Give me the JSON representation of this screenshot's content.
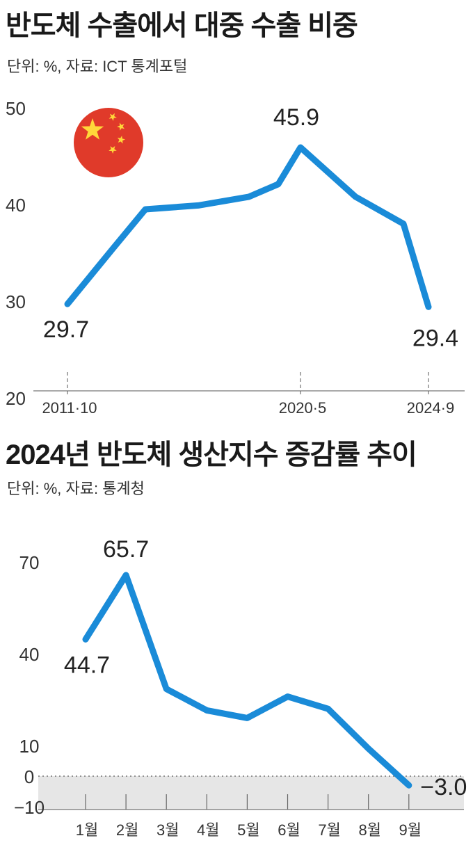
{
  "chart_data": [
    {
      "type": "line",
      "title": "반도체 수출에서 대중 수출 비중",
      "subtitle": "단위: %, 자료: ICT 통계포털",
      "x": [
        "2011·10",
        "",
        "",
        "",
        "",
        "",
        "2020·5",
        "",
        "",
        "2024·9"
      ],
      "xtick_labels": [
        "2011·10",
        "2020·5",
        "2024·9"
      ],
      "y_ticks": [
        20,
        30,
        40,
        50
      ],
      "ylim": [
        20,
        50
      ],
      "series": [
        {
          "values": [
            29.7,
            35.5,
            39.5,
            39.9,
            40.8,
            42.1,
            45.9,
            40.8,
            38.0,
            29.4
          ]
        }
      ],
      "data_labels": [
        {
          "index": 0,
          "text": "29.7"
        },
        {
          "index": 6,
          "text": "45.9"
        },
        {
          "index": 9,
          "text": "29.4"
        }
      ],
      "line_color": "#1a8bd8",
      "flag_icon": "china-flag-icon",
      "grid": false
    },
    {
      "type": "line",
      "title": "2024년 반도체 생산지수 증감률 추이",
      "subtitle": "단위: %, 자료: 통계청",
      "categories": [
        "1월",
        "2월",
        "3월",
        "4월",
        "5월",
        "6월",
        "7월",
        "8월",
        "9월"
      ],
      "y_ticks": [
        -10,
        0,
        10,
        40,
        70
      ],
      "ylim": [
        -10,
        70
      ],
      "series": [
        {
          "values": [
            44.7,
            65.7,
            28.5,
            21.5,
            19.0,
            26.0,
            22.0,
            9.0,
            -3.0
          ]
        }
      ],
      "data_labels": [
        {
          "index": 0,
          "text": "44.7"
        },
        {
          "index": 1,
          "text": "65.7"
        },
        {
          "index": 8,
          "text": "−3.0"
        }
      ],
      "line_color": "#1a8bd8",
      "negative_region_color": "#e6e6e6",
      "grid": false
    }
  ]
}
